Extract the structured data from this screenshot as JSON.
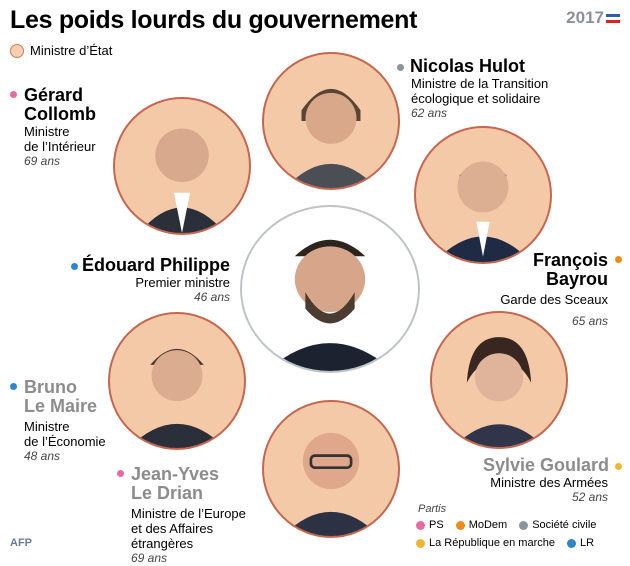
{
  "title": "Les poids lourds du gouvernement",
  "logo": "2017",
  "legend": {
    "state_minister": "Ministre d’État"
  },
  "colors": {
    "PS": "#e86aa3",
    "MoDem": "#f08a1c",
    "Société civile": "#8c949b",
    "La République en marche": "#f2b533",
    "LR": "#2f86c6",
    "state_fill": "#f4c9a8",
    "state_border": "#c5664f"
  },
  "ministers": [
    {
      "name_line1": "Gérard",
      "name_line2": "Collomb",
      "role_line1": "Ministre",
      "role_line2": "de l’Intérieur",
      "age": "69 ans",
      "party": "PS",
      "state": true
    },
    {
      "name_line1": "Nicolas Hulot",
      "role_line1": "Ministre de la Transition",
      "role_line2": "écologique et solidaire",
      "age": "62 ans",
      "party": "Société civile",
      "state": true
    },
    {
      "name_line1": "François",
      "name_line2": "Bayrou",
      "role_line1": "Garde des Sceaux",
      "age": "65 ans",
      "party": "MoDem",
      "state": true
    },
    {
      "name_line1": "Édouard Philippe",
      "role_line1": "Premier ministre",
      "age": "46 ans",
      "party": "LR",
      "state": false
    },
    {
      "name_line1": "Bruno",
      "name_line2": "Le Maire",
      "role_line1": "Ministre",
      "role_line2": "de l’Économie",
      "age": "48 ans",
      "party": "LR",
      "state": false
    },
    {
      "name_line1": "Jean-Yves",
      "name_line2": "Le Drian",
      "role_line1": "Ministre de l’Europe",
      "role_line2": "et des Affaires étrangères",
      "age": "69 ans",
      "party": "PS",
      "state": false
    },
    {
      "name_line1": "Sylvie Goulard",
      "role_line1": "Ministre des Armées",
      "age": "52 ans",
      "party": "La République en marche",
      "state": false
    }
  ],
  "parties_legend": {
    "title": "Partis",
    "items": [
      "PS",
      "MoDem",
      "Société civile",
      "La République en marche",
      "LR"
    ]
  },
  "credit": "AFP"
}
